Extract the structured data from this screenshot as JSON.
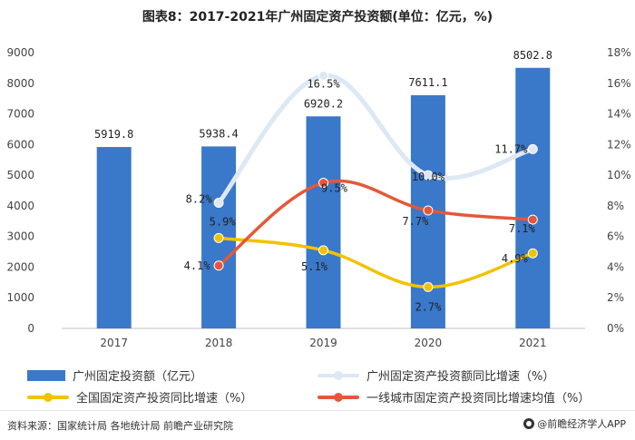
{
  "chart_data": {
    "type": "bar-line-combo",
    "title": "图表8：2017-2021年广州固定资产投资额(单位：亿元，%)",
    "categories": [
      "2017",
      "2018",
      "2019",
      "2020",
      "2021"
    ],
    "bar_series": {
      "name": "广州固定投资额（亿元）",
      "values": [
        5919.8,
        5938.4,
        6920.2,
        7611.1,
        8502.8
      ],
      "labels": [
        "5919.8",
        "5938.4",
        "6920.2",
        "7611.1",
        "8502.8"
      ],
      "color": "#3a78c9"
    },
    "line_series": [
      {
        "name": "广州固定资产投资额同比增速（%）",
        "values": [
          null,
          8.2,
          16.5,
          10.0,
          11.7
        ],
        "labels": [
          "",
          "8.2%",
          "16.5%",
          "10.0%",
          "11.7%"
        ],
        "color": "#dde8f4"
      },
      {
        "name": "全国固定资产投资同比增速（%）",
        "values": [
          null,
          5.9,
          5.1,
          2.7,
          4.9
        ],
        "labels": [
          "",
          "5.9%",
          "5.1%",
          "2.7%",
          "4.9%"
        ],
        "color": "#f2c200"
      },
      {
        "name": "一线城市固定资产投资同比增速均值（%）",
        "values": [
          null,
          4.1,
          9.5,
          7.7,
          7.1
        ],
        "labels": [
          "",
          "4.1%",
          "9.5%",
          "7.7%",
          "7.1%"
        ],
        "color": "#e4583a"
      }
    ],
    "y_left": {
      "min": 0,
      "max": 9000,
      "step": 1000,
      "ticks": [
        "0",
        "1000",
        "2000",
        "3000",
        "4000",
        "5000",
        "6000",
        "7000",
        "8000",
        "9000"
      ]
    },
    "y_right": {
      "min": 0,
      "max": 18,
      "step": 2,
      "ticks": [
        "0%",
        "2%",
        "4%",
        "6%",
        "8%",
        "10%",
        "12%",
        "14%",
        "16%",
        "18%"
      ]
    },
    "legend_position": "bottom"
  },
  "footer": {
    "source": "资料来源：国家统计局 各地统计局 前瞻产业研究院",
    "brand": "@前瞻经济学人APP"
  }
}
